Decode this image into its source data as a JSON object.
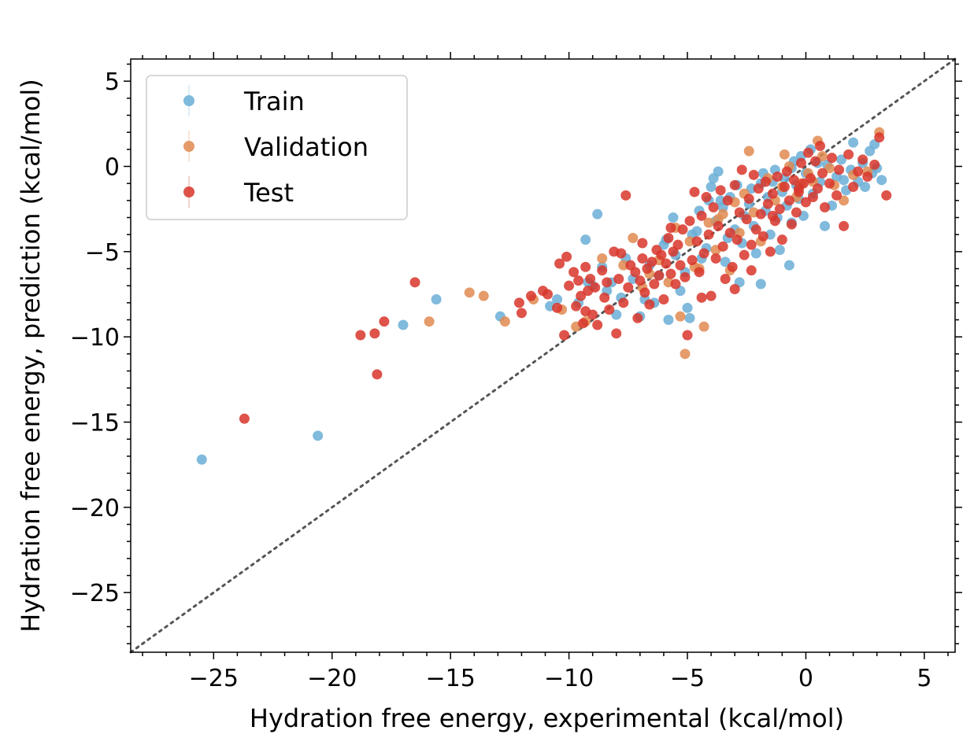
{
  "chart_data": {
    "type": "scatter",
    "xlabel": "Hydration free energy, experimental  (kcal/mol)",
    "ylabel": "Hydration free energy, prediction  (kcal/mol)",
    "xlim": [
      -28.5,
      6.3
    ],
    "ylim": [
      -28.5,
      6.3
    ],
    "xticks": [
      -25,
      -20,
      -15,
      -10,
      -5,
      0,
      5
    ],
    "yticks": [
      -25,
      -20,
      -15,
      -10,
      -5,
      0,
      5
    ],
    "xtick_labels": [
      "−25",
      "−20",
      "−15",
      "−10",
      "−5",
      "0",
      "5"
    ],
    "ytick_labels": [
      "−25",
      "−20",
      "−15",
      "−10",
      "−5",
      "0",
      "5"
    ],
    "grid": false,
    "legend_position": "top-left",
    "reference_line": {
      "style": "dotted",
      "color": "#555555",
      "from": [
        -28.5,
        -28.5
      ],
      "to": [
        6.3,
        6.3
      ]
    },
    "series": [
      {
        "name": "Train",
        "color": "#6aaed6",
        "points": [
          [
            -25.5,
            -17.2
          ],
          [
            -20.6,
            -15.8
          ],
          [
            -17.0,
            -9.3
          ],
          [
            -15.6,
            -7.8
          ],
          [
            -12.9,
            -8.8
          ],
          [
            -10.8,
            -8.2
          ],
          [
            -10.5,
            -7.8
          ],
          [
            -9.6,
            -8.0
          ],
          [
            -9.3,
            -4.3
          ],
          [
            -9.2,
            -6.8
          ],
          [
            -9.0,
            -7.0
          ],
          [
            -8.8,
            -2.8
          ],
          [
            -8.6,
            -5.9
          ],
          [
            -8.4,
            -7.3
          ],
          [
            -8.2,
            -6.8
          ],
          [
            -8.0,
            -8.7
          ],
          [
            -7.8,
            -7.7
          ],
          [
            -7.6,
            -5.4
          ],
          [
            -7.3,
            -6.6
          ],
          [
            -7.0,
            -8.8
          ],
          [
            -6.8,
            -7.8
          ],
          [
            -6.6,
            -5.8
          ],
          [
            -6.4,
            -8.0
          ],
          [
            -6.2,
            -6.4
          ],
          [
            -6.0,
            -4.6
          ],
          [
            -5.8,
            -9.0
          ],
          [
            -5.6,
            -3.0
          ],
          [
            -5.5,
            -5.2
          ],
          [
            -5.3,
            -7.3
          ],
          [
            -5.1,
            -6.2
          ],
          [
            -5.0,
            -8.3
          ],
          [
            -4.9,
            -8.9
          ],
          [
            -4.8,
            -4.0
          ],
          [
            -4.6,
            -3.8
          ],
          [
            -4.5,
            -2.6
          ],
          [
            -4.4,
            -5.4
          ],
          [
            -4.2,
            -4.8
          ],
          [
            -4.0,
            -1.2
          ],
          [
            -3.9,
            -0.7
          ],
          [
            -3.8,
            -3.2
          ],
          [
            -3.7,
            -0.3
          ],
          [
            -3.6,
            -2.0
          ],
          [
            -3.4,
            -5.6
          ],
          [
            -3.3,
            -4.2
          ],
          [
            -3.2,
            -1.8
          ],
          [
            -3.0,
            -3.7
          ],
          [
            -2.8,
            -6.8
          ],
          [
            -2.7,
            -4.5
          ],
          [
            -2.6,
            -2.9
          ],
          [
            -2.4,
            -2.2
          ],
          [
            -2.3,
            -1.3
          ],
          [
            -2.2,
            -3.5
          ],
          [
            -2.1,
            -5.1
          ],
          [
            -1.9,
            -6.9
          ],
          [
            -1.8,
            -0.4
          ],
          [
            -1.7,
            -2.6
          ],
          [
            -1.6,
            -1.8
          ],
          [
            -1.5,
            -4.0
          ],
          [
            -1.4,
            -0.9
          ],
          [
            -1.3,
            -0.2
          ],
          [
            -1.2,
            -3.0
          ],
          [
            -1.1,
            -4.9
          ],
          [
            -1.0,
            -1.5
          ],
          [
            -0.9,
            -0.7
          ],
          [
            -0.8,
            -2.3
          ],
          [
            -0.7,
            -5.8
          ],
          [
            -0.6,
            -3.3
          ],
          [
            -0.5,
            0.3
          ],
          [
            -0.4,
            -1.1
          ],
          [
            -0.3,
            -1.9
          ],
          [
            -0.2,
            0.6
          ],
          [
            -0.1,
            -2.9
          ],
          [
            0.0,
            -0.4
          ],
          [
            0.2,
            1.0
          ],
          [
            0.3,
            -1.6
          ],
          [
            0.5,
            0.2
          ],
          [
            0.6,
            -0.9
          ],
          [
            0.8,
            -3.5
          ],
          [
            0.9,
            0.1
          ],
          [
            1.1,
            -2.3
          ],
          [
            1.3,
            -0.6
          ],
          [
            1.5,
            0.4
          ],
          [
            1.7,
            -1.4
          ],
          [
            1.9,
            -0.2
          ],
          [
            2.0,
            1.4
          ],
          [
            2.2,
            -0.9
          ],
          [
            2.4,
            0.2
          ],
          [
            2.5,
            -1.2
          ],
          [
            2.7,
            0.9
          ],
          [
            2.8,
            -0.4
          ],
          [
            2.9,
            1.3
          ],
          [
            3.0,
            -0.1
          ],
          [
            3.2,
            -0.8
          ],
          [
            -2.9,
            -1.1
          ],
          [
            -4.1,
            -2.0
          ],
          [
            -5.9,
            -4.3
          ],
          [
            -3.5,
            -2.4
          ],
          [
            -1.9,
            -1.0
          ],
          [
            -0.6,
            -0.1
          ],
          [
            1.6,
            -0.8
          ]
        ]
      },
      {
        "name": "Validation",
        "color": "#e08a50",
        "points": [
          [
            -15.9,
            -9.1
          ],
          [
            -14.2,
            -7.4
          ],
          [
            -13.6,
            -7.6
          ],
          [
            -12.7,
            -9.1
          ],
          [
            -11.5,
            -7.8
          ],
          [
            -10.3,
            -8.4
          ],
          [
            -9.7,
            -9.4
          ],
          [
            -9.3,
            -9.1
          ],
          [
            -8.6,
            -5.4
          ],
          [
            -7.7,
            -5.8
          ],
          [
            -7.3,
            -4.2
          ],
          [
            -6.6,
            -6.3
          ],
          [
            -6.2,
            -5.5
          ],
          [
            -5.8,
            -6.8
          ],
          [
            -5.5,
            -3.6
          ],
          [
            -5.3,
            -8.8
          ],
          [
            -5.1,
            -11.0
          ],
          [
            -4.9,
            -4.4
          ],
          [
            -4.7,
            -5.9
          ],
          [
            -4.5,
            -6.0
          ],
          [
            -4.3,
            -9.4
          ],
          [
            -4.1,
            -3.3
          ],
          [
            -3.8,
            -4.9
          ],
          [
            -3.5,
            -2.8
          ],
          [
            -3.2,
            -6.1
          ],
          [
            -3.0,
            -2.1
          ],
          [
            -2.8,
            -3.9
          ],
          [
            -2.6,
            -1.6
          ],
          [
            -2.4,
            0.9
          ],
          [
            -2.2,
            -2.7
          ],
          [
            -1.9,
            -4.4
          ],
          [
            -1.6,
            -0.7
          ],
          [
            -1.3,
            -2.0
          ],
          [
            -1.0,
            -1.2
          ],
          [
            -0.7,
            0.0
          ],
          [
            -0.4,
            -1.8
          ],
          [
            -0.2,
            -1.0
          ],
          [
            0.1,
            -0.4
          ],
          [
            0.3,
            -0.9
          ],
          [
            0.5,
            1.5
          ],
          [
            0.7,
            0.6
          ],
          [
            1.0,
            -0.1
          ],
          [
            1.2,
            -1.1
          ],
          [
            1.6,
            -2.0
          ],
          [
            2.0,
            -0.5
          ],
          [
            2.6,
            -0.3
          ],
          [
            3.1,
            2.0
          ],
          [
            -0.9,
            0.7
          ],
          [
            -3.7,
            -3.1
          ],
          [
            -6.9,
            -7.1
          ]
        ]
      },
      {
        "name": "Test",
        "color": "#d8352a",
        "points": [
          [
            -23.7,
            -14.8
          ],
          [
            -18.8,
            -9.9
          ],
          [
            -18.2,
            -9.8
          ],
          [
            -18.1,
            -12.2
          ],
          [
            -17.8,
            -9.1
          ],
          [
            -16.5,
            -6.8
          ],
          [
            -12.1,
            -8.0
          ],
          [
            -12.0,
            -8.6
          ],
          [
            -11.6,
            -7.6
          ],
          [
            -11.1,
            -7.3
          ],
          [
            -10.9,
            -7.5
          ],
          [
            -10.5,
            -8.3
          ],
          [
            -10.4,
            -5.7
          ],
          [
            -10.2,
            -9.9
          ],
          [
            -10.1,
            -5.3
          ],
          [
            -10.0,
            -7.0
          ],
          [
            -9.8,
            -6.2
          ],
          [
            -9.7,
            -8.2
          ],
          [
            -9.6,
            -6.7
          ],
          [
            -9.5,
            -7.6
          ],
          [
            -9.4,
            -9.2
          ],
          [
            -9.3,
            -8.5
          ],
          [
            -9.3,
            -5.9
          ],
          [
            -9.2,
            -7.3
          ],
          [
            -9.1,
            -6.6
          ],
          [
            -9.0,
            -8.7
          ],
          [
            -8.9,
            -7.1
          ],
          [
            -8.8,
            -9.3
          ],
          [
            -8.6,
            -6.1
          ],
          [
            -8.5,
            -7.7
          ],
          [
            -8.4,
            -6.8
          ],
          [
            -8.3,
            -8.4
          ],
          [
            -8.1,
            -5.0
          ],
          [
            -8.0,
            -9.8
          ],
          [
            -7.9,
            -6.6
          ],
          [
            -7.8,
            -5.1
          ],
          [
            -7.7,
            -8.0
          ],
          [
            -7.6,
            -1.7
          ],
          [
            -7.5,
            -7.1
          ],
          [
            -7.4,
            -5.8
          ],
          [
            -7.2,
            -6.2
          ],
          [
            -7.1,
            -8.9
          ],
          [
            -7.0,
            -6.7
          ],
          [
            -6.9,
            -5.4
          ],
          [
            -6.8,
            -7.4
          ],
          [
            -6.7,
            -6.0
          ],
          [
            -6.6,
            -8.1
          ],
          [
            -6.5,
            -5.6
          ],
          [
            -6.4,
            -6.9
          ],
          [
            -6.3,
            -4.9
          ],
          [
            -6.2,
            -6.4
          ],
          [
            -6.1,
            -5.2
          ],
          [
            -6.0,
            -7.8
          ],
          [
            -5.9,
            -5.7
          ],
          [
            -5.8,
            -4.2
          ],
          [
            -5.7,
            -6.3
          ],
          [
            -5.6,
            -5.0
          ],
          [
            -5.5,
            -6.9
          ],
          [
            -5.4,
            -4.6
          ],
          [
            -5.3,
            -5.8
          ],
          [
            -5.2,
            -3.7
          ],
          [
            -5.1,
            -6.5
          ],
          [
            -5.0,
            -9.9
          ],
          [
            -4.9,
            -3.2
          ],
          [
            -4.8,
            -5.5
          ],
          [
            -4.7,
            -1.5
          ],
          [
            -4.6,
            -4.4
          ],
          [
            -4.5,
            -6.2
          ],
          [
            -4.4,
            -2.9
          ],
          [
            -4.3,
            -5.1
          ],
          [
            -4.2,
            -1.8
          ],
          [
            -4.1,
            -4.0
          ],
          [
            -4.0,
            -7.6
          ],
          [
            -3.9,
            -2.4
          ],
          [
            -3.8,
            -5.4
          ],
          [
            -3.7,
            -3.5
          ],
          [
            -3.6,
            -1.4
          ],
          [
            -3.5,
            -4.7
          ],
          [
            -3.4,
            -6.6
          ],
          [
            -3.3,
            -2.0
          ],
          [
            -3.2,
            -3.9
          ],
          [
            -3.1,
            -5.9
          ],
          [
            -3.0,
            -1.1
          ],
          [
            -2.9,
            -4.3
          ],
          [
            -2.8,
            -2.7
          ],
          [
            -2.7,
            -0.2
          ],
          [
            -2.6,
            -5.2
          ],
          [
            -2.5,
            -3.1
          ],
          [
            -2.4,
            -1.9
          ],
          [
            -2.3,
            -4.6
          ],
          [
            -2.2,
            -0.5
          ],
          [
            -2.1,
            -3.7
          ],
          [
            -2.0,
            -1.3
          ],
          [
            -1.9,
            -2.8
          ],
          [
            -1.8,
            -4.1
          ],
          [
            -1.7,
            -0.9
          ],
          [
            -1.6,
            -2.2
          ],
          [
            -1.5,
            -5.0
          ],
          [
            -1.4,
            -1.6
          ],
          [
            -1.3,
            -3.2
          ],
          [
            -1.2,
            -0.6
          ],
          [
            -1.1,
            -2.5
          ],
          [
            -1.0,
            -4.3
          ],
          [
            -0.9,
            -1.2
          ],
          [
            -0.8,
            -0.3
          ],
          [
            -0.7,
            -2.0
          ],
          [
            -0.6,
            -3.4
          ],
          [
            -0.5,
            -0.8
          ],
          [
            -0.4,
            -2.7
          ],
          [
            -0.3,
            -1.5
          ],
          [
            -0.2,
            0.2
          ],
          [
            -0.1,
            -1.0
          ],
          [
            0.0,
            -2.1
          ],
          [
            0.1,
            0.8
          ],
          [
            0.2,
            -0.7
          ],
          [
            0.3,
            -1.8
          ],
          [
            0.4,
            0.3
          ],
          [
            0.5,
            -1.3
          ],
          [
            0.6,
            1.2
          ],
          [
            0.7,
            -0.4
          ],
          [
            0.8,
            -2.4
          ],
          [
            1.0,
            -1.0
          ],
          [
            1.1,
            0.5
          ],
          [
            1.3,
            -1.7
          ],
          [
            1.4,
            -0.2
          ],
          [
            1.6,
            -3.5
          ],
          [
            1.8,
            0.7
          ],
          [
            2.0,
            -1.2
          ],
          [
            2.2,
            -0.3
          ],
          [
            2.4,
            0.4
          ],
          [
            2.6,
            -0.6
          ],
          [
            2.9,
            0.1
          ],
          [
            3.1,
            1.7
          ],
          [
            3.4,
            -1.7
          ],
          [
            -4.4,
            -7.7
          ],
          [
            -3.0,
            -7.2
          ],
          [
            -2.3,
            -6.1
          ],
          [
            -6.9,
            -4.5
          ],
          [
            -5.7,
            -3.6
          ],
          [
            -1.4,
            -2.9
          ],
          [
            -0.3,
            -1.3
          ]
        ]
      }
    ]
  }
}
